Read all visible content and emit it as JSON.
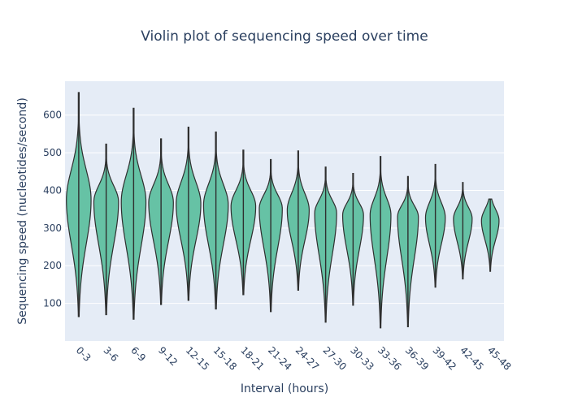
{
  "chart_data": {
    "type": "violin",
    "title": "Violin plot of sequencing speed over time",
    "xlabel": "Interval (hours)",
    "ylabel": "Sequencing speed (nucleotides/second)",
    "ylim": [
      0,
      690
    ],
    "yticks": [
      100,
      200,
      300,
      400,
      500,
      600
    ],
    "grid": true,
    "categories": [
      "0-3",
      "3-6",
      "6-9",
      "9-12",
      "12-15",
      "15-18",
      "18-21",
      "21-24",
      "24-27",
      "27-30",
      "30-33",
      "33-36",
      "36-39",
      "39-42",
      "42-45",
      "45-48"
    ],
    "violins": [
      {
        "min": 65,
        "max": 660,
        "mode": 375,
        "max_density_half_width": 0.45
      },
      {
        "min": 70,
        "max": 523,
        "mode": 370,
        "max_density_half_width": 0.45
      },
      {
        "min": 58,
        "max": 618,
        "mode": 370,
        "max_density_half_width": 0.45
      },
      {
        "min": 97,
        "max": 537,
        "mode": 368,
        "max_density_half_width": 0.45
      },
      {
        "min": 108,
        "max": 568,
        "mode": 365,
        "max_density_half_width": 0.45
      },
      {
        "min": 85,
        "max": 555,
        "mode": 362,
        "max_density_half_width": 0.45
      },
      {
        "min": 123,
        "max": 507,
        "mode": 358,
        "max_density_half_width": 0.45
      },
      {
        "min": 78,
        "max": 482,
        "mode": 352,
        "max_density_half_width": 0.42
      },
      {
        "min": 135,
        "max": 505,
        "mode": 348,
        "max_density_half_width": 0.4
      },
      {
        "min": 50,
        "max": 462,
        "mode": 340,
        "max_density_half_width": 0.4
      },
      {
        "min": 95,
        "max": 445,
        "mode": 335,
        "max_density_half_width": 0.38
      },
      {
        "min": 35,
        "max": 490,
        "mode": 335,
        "max_density_half_width": 0.38
      },
      {
        "min": 38,
        "max": 437,
        "mode": 330,
        "max_density_half_width": 0.38
      },
      {
        "min": 143,
        "max": 469,
        "mode": 328,
        "max_density_half_width": 0.36
      },
      {
        "min": 165,
        "max": 421,
        "mode": 325,
        "max_density_half_width": 0.34
      },
      {
        "min": 185,
        "max": 377,
        "mode": 320,
        "max_density_half_width": 0.32
      }
    ],
    "colors": {
      "violin_fill": "#66c2a5",
      "violin_line": "#2f2f2f",
      "plot_bg": "#e5ecf6",
      "grid": "#ffffff",
      "text": "#2a3f5f"
    }
  }
}
